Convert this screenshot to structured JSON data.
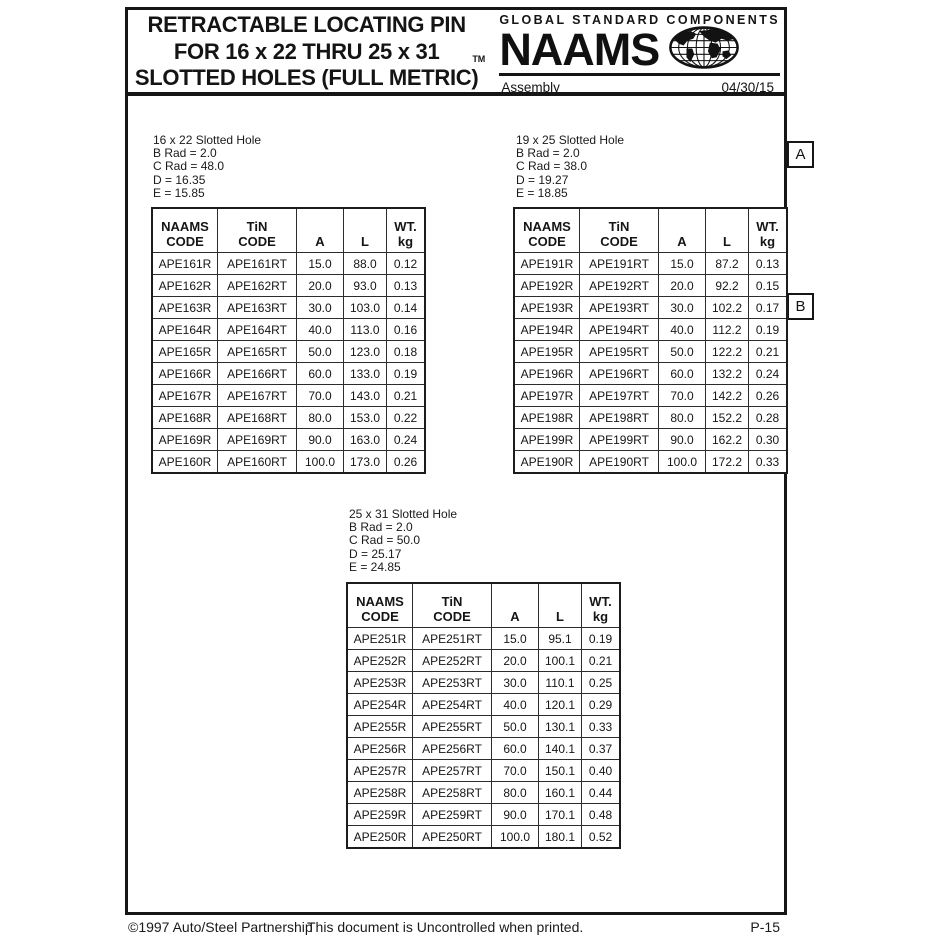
{
  "header": {
    "title_lines": [
      "RETRACTABLE LOCATING PIN",
      "FOR 16 x 22 THRU 25 x 31",
      "SLOTTED HOLES (FULL METRIC)"
    ],
    "brand": {
      "tagline": "GLOBAL STANDARD COMPONENTS",
      "trademark": "TM",
      "name": "NAAMS",
      "subtitle": "Assembly",
      "date": "04/30/15"
    }
  },
  "side_labels": {
    "a": "A",
    "b": "B"
  },
  "tables": [
    {
      "info_lines": [
        "16 x 22 Slotted Hole",
        "B Rad = 2.0",
        "C Rad = 48.0",
        "D = 16.35",
        "E = 15.85"
      ],
      "columns": [
        [
          "NAAMS",
          "CODE"
        ],
        [
          "TiN",
          "CODE"
        ],
        [
          "A"
        ],
        [
          "L"
        ],
        [
          "WT.",
          "kg"
        ]
      ],
      "rows": [
        [
          "APE161R",
          "APE161RT",
          "15.0",
          "88.0",
          "0.12"
        ],
        [
          "APE162R",
          "APE162RT",
          "20.0",
          "93.0",
          "0.13"
        ],
        [
          "APE163R",
          "APE163RT",
          "30.0",
          "103.0",
          "0.14"
        ],
        [
          "APE164R",
          "APE164RT",
          "40.0",
          "113.0",
          "0.16"
        ],
        [
          "APE165R",
          "APE165RT",
          "50.0",
          "123.0",
          "0.18"
        ],
        [
          "APE166R",
          "APE166RT",
          "60.0",
          "133.0",
          "0.19"
        ],
        [
          "APE167R",
          "APE167RT",
          "70.0",
          "143.0",
          "0.21"
        ],
        [
          "APE168R",
          "APE168RT",
          "80.0",
          "153.0",
          "0.22"
        ],
        [
          "APE169R",
          "APE169RT",
          "90.0",
          "163.0",
          "0.24"
        ],
        [
          "APE160R",
          "APE160RT",
          "100.0",
          "173.0",
          "0.26"
        ]
      ]
    },
    {
      "info_lines": [
        "19 x 25 Slotted Hole",
        "B Rad = 2.0",
        "C Rad = 38.0",
        "D = 19.27",
        "E = 18.85"
      ],
      "columns": [
        [
          "NAAMS",
          "CODE"
        ],
        [
          "TiN",
          "CODE"
        ],
        [
          "A"
        ],
        [
          "L"
        ],
        [
          "WT.",
          "kg"
        ]
      ],
      "rows": [
        [
          "APE191R",
          "APE191RT",
          "15.0",
          "87.2",
          "0.13"
        ],
        [
          "APE192R",
          "APE192RT",
          "20.0",
          "92.2",
          "0.15"
        ],
        [
          "APE193R",
          "APE193RT",
          "30.0",
          "102.2",
          "0.17"
        ],
        [
          "APE194R",
          "APE194RT",
          "40.0",
          "112.2",
          "0.19"
        ],
        [
          "APE195R",
          "APE195RT",
          "50.0",
          "122.2",
          "0.21"
        ],
        [
          "APE196R",
          "APE196RT",
          "60.0",
          "132.2",
          "0.24"
        ],
        [
          "APE197R",
          "APE197RT",
          "70.0",
          "142.2",
          "0.26"
        ],
        [
          "APE198R",
          "APE198RT",
          "80.0",
          "152.2",
          "0.28"
        ],
        [
          "APE199R",
          "APE199RT",
          "90.0",
          "162.2",
          "0.30"
        ],
        [
          "APE190R",
          "APE190RT",
          "100.0",
          "172.2",
          "0.33"
        ]
      ]
    },
    {
      "info_lines": [
        "25 x 31 Slotted Hole",
        "B Rad = 2.0",
        "C Rad = 50.0",
        "D = 25.17",
        "E = 24.85"
      ],
      "columns": [
        [
          "NAAMS",
          "CODE"
        ],
        [
          "TiN",
          "CODE"
        ],
        [
          "A"
        ],
        [
          "L"
        ],
        [
          "WT.",
          "kg"
        ]
      ],
      "rows": [
        [
          "APE251R",
          "APE251RT",
          "15.0",
          "95.1",
          "0.19"
        ],
        [
          "APE252R",
          "APE252RT",
          "20.0",
          "100.1",
          "0.21"
        ],
        [
          "APE253R",
          "APE253RT",
          "30.0",
          "110.1",
          "0.25"
        ],
        [
          "APE254R",
          "APE254RT",
          "40.0",
          "120.1",
          "0.29"
        ],
        [
          "APE255R",
          "APE255RT",
          "50.0",
          "130.1",
          "0.33"
        ],
        [
          "APE256R",
          "APE256RT",
          "60.0",
          "140.1",
          "0.37"
        ],
        [
          "APE257R",
          "APE257RT",
          "70.0",
          "150.1",
          "0.40"
        ],
        [
          "APE258R",
          "APE258RT",
          "80.0",
          "160.1",
          "0.44"
        ],
        [
          "APE259R",
          "APE259RT",
          "90.0",
          "170.1",
          "0.48"
        ],
        [
          "APE250R",
          "APE250RT",
          "100.0",
          "180.1",
          "0.52"
        ]
      ]
    }
  ],
  "footer": {
    "copyright": "©1997 Auto/Steel Partnership",
    "notice": "This document is Uncontrolled when printed.",
    "page_number": "P-15"
  }
}
